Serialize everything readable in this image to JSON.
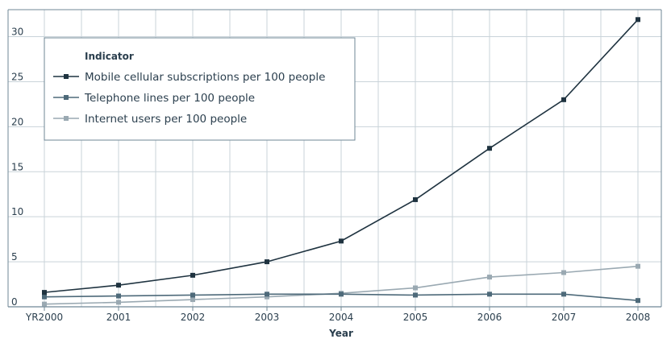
{
  "chart_data": {
    "type": "line",
    "title": "",
    "xlabel": "Year",
    "ylabel": "",
    "categories": [
      "YR2000",
      "2001",
      "2002",
      "2003",
      "2004",
      "2005",
      "2006",
      "2007",
      "2008"
    ],
    "ylim": [
      0,
      33
    ],
    "yticks": [
      0,
      5,
      10,
      15,
      20,
      25,
      30
    ],
    "grid": true,
    "legend": {
      "title": "Indicator",
      "placement": "top-left"
    },
    "series": [
      {
        "name": "Mobile cellular subscriptions per 100 people",
        "color": "#1f3340",
        "values": [
          1.6,
          2.4,
          3.5,
          5.0,
          7.3,
          11.9,
          17.6,
          23.0,
          31.9
        ]
      },
      {
        "name": "Telephone lines per 100 people",
        "color": "#4e6a7a",
        "values": [
          1.1,
          1.2,
          1.3,
          1.4,
          1.4,
          1.3,
          1.4,
          1.4,
          0.7
        ]
      },
      {
        "name": "Internet users per 100 people",
        "color": "#9aa9b2",
        "values": [
          0.3,
          0.5,
          0.8,
          1.1,
          1.5,
          2.1,
          3.3,
          3.8,
          4.5
        ]
      }
    ]
  }
}
